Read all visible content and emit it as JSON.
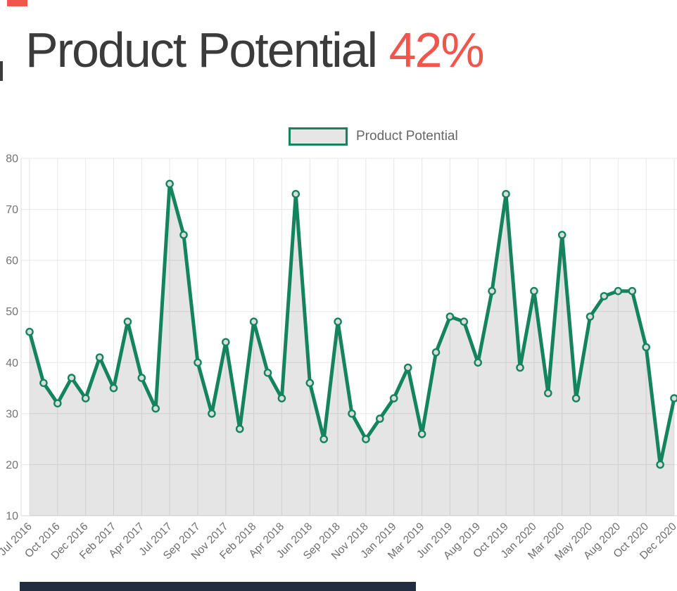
{
  "page": {
    "title": "Product Potential",
    "title_value": "42%",
    "colors": {
      "accent_red": "#f1554b",
      "line_green": "#13845e",
      "area_gray": "#e6e6e6",
      "navy_bar": "#222d42",
      "title_text": "#3b3b3b",
      "axis_text": "#6e6e6e"
    }
  },
  "chart_data": {
    "type": "line",
    "title": "Product Potential 42%",
    "series": [
      {
        "name": "Product Potential",
        "values": [
          46,
          36,
          32,
          37,
          33,
          41,
          35,
          48,
          37,
          31,
          75,
          65,
          40,
          30,
          44,
          27,
          48,
          38,
          33,
          73,
          36,
          25,
          48,
          30,
          25,
          29,
          33,
          39,
          26,
          42,
          49,
          48,
          40,
          54,
          73,
          39,
          54,
          34,
          65,
          33,
          49,
          53,
          54,
          54,
          43,
          20,
          33
        ]
      }
    ],
    "x_labels": [
      "Jul 2016",
      "Oct 2016",
      "Dec 2016",
      "Feb 2017",
      "Apr 2017",
      "Jul 2017",
      "Sep 2017",
      "Nov 2017",
      "Feb 2018",
      "Apr 2018",
      "Jun 2018",
      "Sep 2018",
      "Nov 2018",
      "Jan 2019",
      "Mar 2019",
      "Jun 2019",
      "Aug 2019",
      "Oct 2019",
      "Jan 2020",
      "Mar 2020",
      "May 2020",
      "Aug 2020",
      "Oct 2020",
      "Dec 2020"
    ],
    "label_every_n_points": 2,
    "yticks": [
      10,
      20,
      30,
      40,
      50,
      60,
      70,
      80
    ],
    "ylim": [
      10,
      80
    ],
    "grid": true,
    "legend_position": "top",
    "line_color": "#13845e",
    "marker_style": "circle-outline",
    "area_fill": "light-gray-translucent"
  }
}
